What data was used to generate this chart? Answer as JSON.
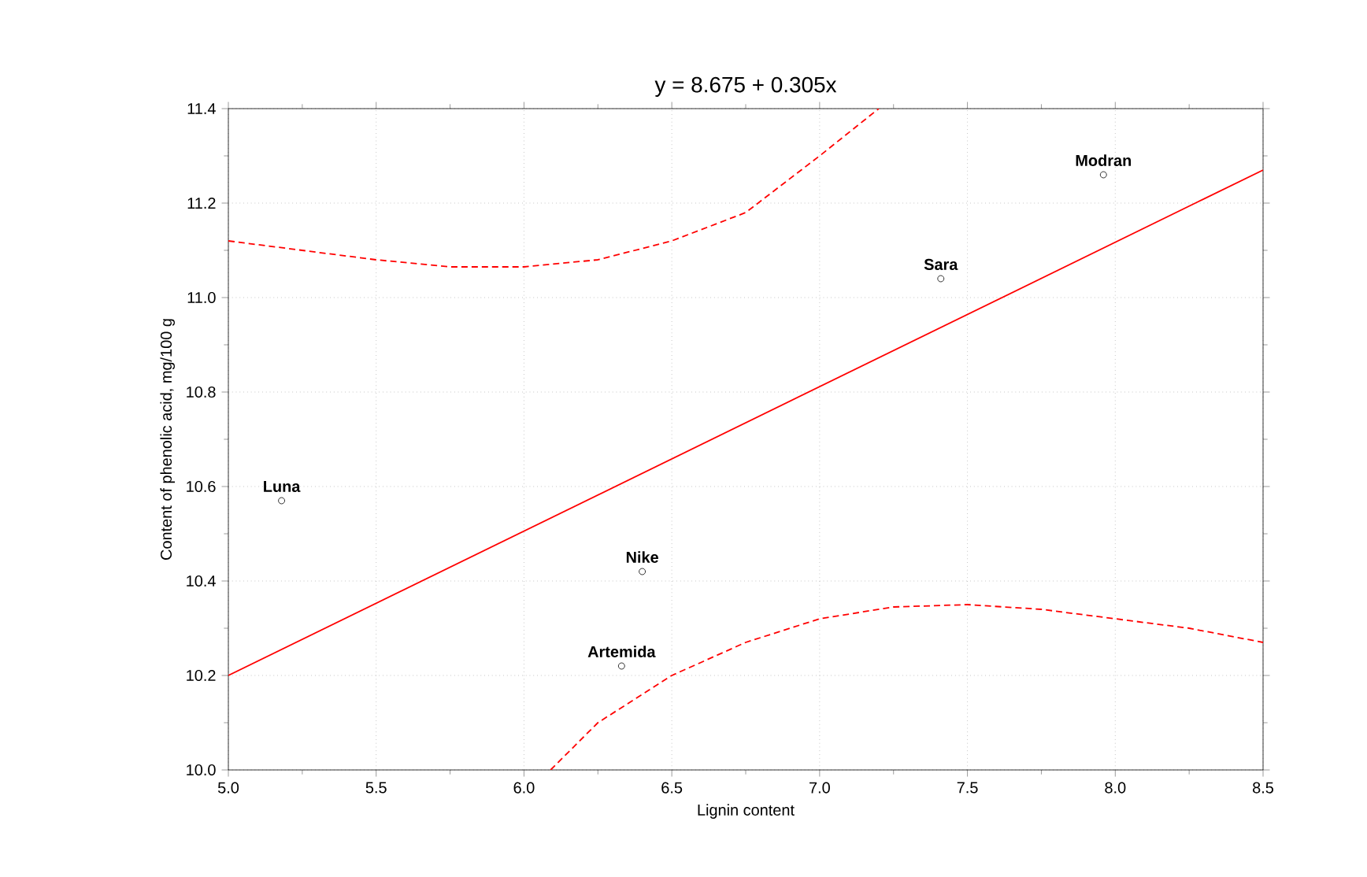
{
  "chart_data": {
    "type": "scatter",
    "title": "y = 8.675 + 0.305x",
    "xlabel": "Lignin content",
    "ylabel": "Content of phenolic acid, mg/100 g",
    "xlim": [
      5.0,
      8.5
    ],
    "ylim": [
      10.0,
      11.4
    ],
    "xticks": [
      {
        "value": 5.0,
        "label": "5.0"
      },
      {
        "value": 5.5,
        "label": "5.5"
      },
      {
        "value": 6.0,
        "label": "6.0"
      },
      {
        "value": 6.5,
        "label": "6.5"
      },
      {
        "value": 7.0,
        "label": "7.0"
      },
      {
        "value": 7.5,
        "label": "7.5"
      },
      {
        "value": 8.0,
        "label": "8.0"
      },
      {
        "value": 8.5,
        "label": "8.5"
      }
    ],
    "yticks": [
      {
        "value": 10.0,
        "label": "10.0"
      },
      {
        "value": 10.2,
        "label": "10.2"
      },
      {
        "value": 10.4,
        "label": "10.4"
      },
      {
        "value": 10.6,
        "label": "10.6"
      },
      {
        "value": 10.8,
        "label": "10.8"
      },
      {
        "value": 11.0,
        "label": "11.0"
      },
      {
        "value": 11.2,
        "label": "11.2"
      },
      {
        "value": 11.4,
        "label": "11.4"
      }
    ],
    "grid": true,
    "series": [
      {
        "marker": "circle",
        "color": "#000000",
        "x": [
          5.18,
          6.4,
          6.33,
          7.41,
          7.96
        ],
        "values": [
          10.57,
          10.42,
          10.22,
          11.04,
          11.26
        ]
      },
      {
        "type": "line",
        "marker": "none",
        "color": "#ff0000",
        "line_style": "solid",
        "x": [
          5.0,
          8.5
        ],
        "values": [
          10.2,
          11.27
        ]
      },
      {
        "type": "line",
        "marker": "none",
        "color": "#ff0000",
        "line_style": "dashed",
        "x": [
          5.0,
          5.5,
          5.75,
          6.0,
          6.25,
          6.5,
          6.75,
          7.0,
          7.2
        ],
        "values": [
          11.12,
          11.08,
          11.065,
          11.065,
          11.08,
          11.12,
          11.18,
          11.3,
          11.4
        ]
      },
      {
        "type": "line",
        "marker": "none",
        "color": "#ff0000",
        "line_style": "dashed",
        "x": [
          6.09,
          6.25,
          6.5,
          6.75,
          7.0,
          7.25,
          7.5,
          7.75,
          8.0,
          8.25,
          8.5
        ],
        "values": [
          10.0,
          10.1,
          10.2,
          10.27,
          10.32,
          10.345,
          10.35,
          10.34,
          10.32,
          10.3,
          10.27
        ]
      }
    ],
    "annotations": [
      {
        "text": "Luna",
        "x": 5.18,
        "y": 10.57
      },
      {
        "text": "Nike",
        "x": 6.4,
        "y": 10.42
      },
      {
        "text": "Artemida",
        "x": 6.33,
        "y": 10.22
      },
      {
        "text": "Sara",
        "x": 7.41,
        "y": 11.04
      },
      {
        "text": "Modran",
        "x": 7.96,
        "y": 11.26
      }
    ]
  }
}
